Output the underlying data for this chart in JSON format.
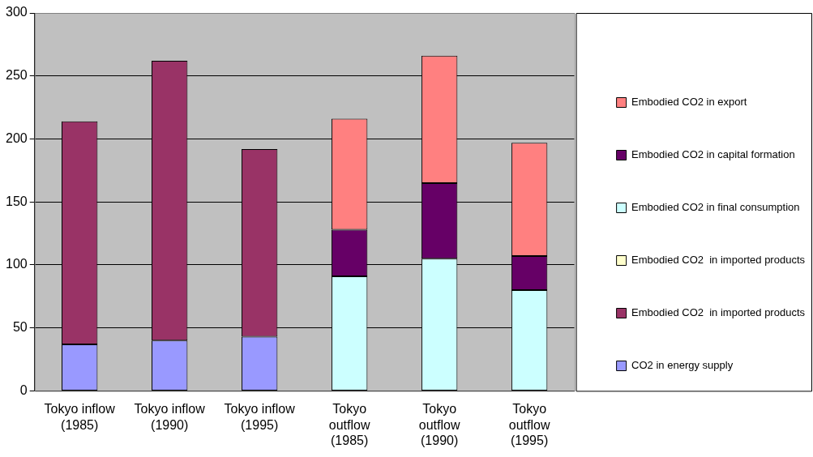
{
  "chart_data": {
    "type": "bar",
    "stacked": true,
    "categories": [
      "Tokyo inflow (1985)",
      "Tokyo inflow (1990)",
      "Tokyo inflow (1995)",
      "Tokyo outflow (1985)",
      "Tokyo outflow (1990)",
      "Tokyo outflow (1995)"
    ],
    "series": [
      {
        "name": "CO2 in energy supply",
        "color": "#9999ff",
        "values": [
          37,
          40,
          43,
          null,
          null,
          null
        ]
      },
      {
        "name": "Embodied CO2  in imported products",
        "color": "#993366",
        "values": [
          177,
          222,
          149,
          null,
          null,
          null
        ]
      },
      {
        "name": "Embodied CO2  in imported products",
        "color": "#ffffcc",
        "values": [
          null,
          null,
          null,
          null,
          null,
          null
        ]
      },
      {
        "name": "Embodied CO2 in final consumption",
        "color": "#ccffff",
        "values": [
          null,
          null,
          null,
          91,
          105,
          80
        ]
      },
      {
        "name": "Embodied CO2 in capital formation",
        "color": "#660066",
        "values": [
          null,
          null,
          null,
          37,
          60,
          27
        ]
      },
      {
        "name": "Embodied CO2 in export",
        "color": "#ff8080",
        "values": [
          null,
          null,
          null,
          88,
          101,
          90
        ]
      }
    ],
    "ylim": [
      0,
      300
    ],
    "yticks": [
      0,
      50,
      100,
      150,
      200,
      250,
      300
    ],
    "grid": "y",
    "legend": "right"
  }
}
